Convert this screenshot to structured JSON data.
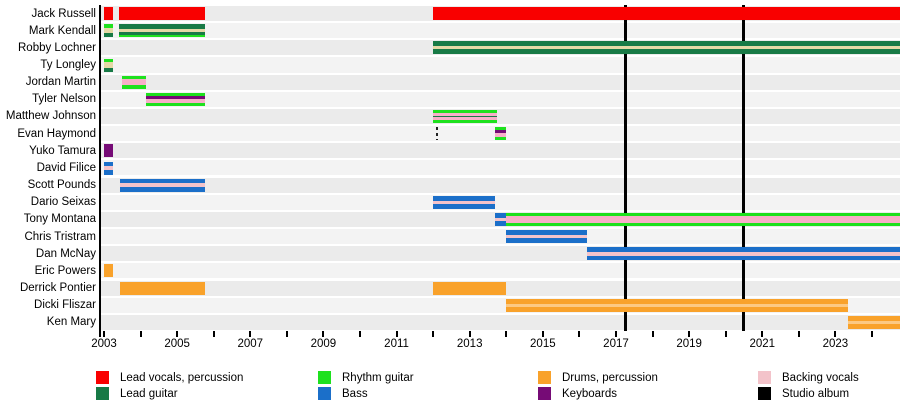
{
  "chart_data": {
    "type": "timeline",
    "description": "Band membership timeline (Gantt-style) with roles as colored bar stripes and studio album release lines",
    "x_axis": {
      "unit": "year",
      "tick_start": 2003,
      "tick_end": 2024,
      "minor_tick_every": 1,
      "label_every": 2,
      "labels": [
        "2003",
        "2005",
        "2007",
        "2009",
        "2011",
        "2013",
        "2015",
        "2017",
        "2019",
        "2021",
        "2023"
      ],
      "range": [
        2002.9,
        2024.8
      ]
    },
    "colors": {
      "lead_vocals": "#f90000",
      "lead_guitar": "#187a46",
      "rhythm_guitar": "#1ee11e",
      "bass": "#1b6fc9",
      "drums": "#f9a22b",
      "keyboards": "#760b76",
      "backing_vocals": "#f3c3ca",
      "backing_vocals_bright": "#f8afc9",
      "wheat": "#e5d9a6",
      "drums_light": "#fcc983",
      "studio_album": "#000000",
      "band_even": "#ebebeb",
      "band_odd": "#f3f3f3"
    },
    "legend": [
      {
        "label": "Lead vocals, percussion",
        "color": "lead_vocals"
      },
      {
        "label": "Lead guitar",
        "color": "lead_guitar"
      },
      {
        "label": "Rhythm guitar",
        "color": "rhythm_guitar"
      },
      {
        "label": "Bass",
        "color": "bass"
      },
      {
        "label": "Drums, percussion",
        "color": "drums"
      },
      {
        "label": "Keyboards",
        "color": "keyboards"
      },
      {
        "label": "Backing vocals",
        "color": "backing_vocals"
      },
      {
        "label": "Studio album",
        "color": "studio_album"
      }
    ],
    "albums": [
      2017.25,
      2020.5
    ],
    "members": [
      {
        "name": "Jack Russell",
        "bars": [
          {
            "start": 2003.0,
            "end": 2003.25,
            "stripes": [
              [
                "lead_vocals",
                1
              ]
            ]
          },
          {
            "start": 2003.42,
            "end": 2005.76,
            "stripes": [
              [
                "lead_vocals",
                1
              ]
            ]
          },
          {
            "start": 2012.0,
            "end": 2024.8,
            "stripes": [
              [
                "lead_vocals",
                1
              ]
            ]
          }
        ]
      },
      {
        "name": "Mark Kendall",
        "bars": [
          {
            "start": 2003.0,
            "end": 2003.25,
            "stripes": [
              [
                "rhythm_guitar",
                3
              ],
              [
                "wheat",
                4
              ],
              [
                "lead_guitar",
                3
              ]
            ]
          },
          {
            "start": 2003.42,
            "end": 2005.76,
            "stripes": [
              [
                "lead_guitar",
                4
              ],
              [
                "wheat",
                3
              ],
              [
                "lead_guitar",
                3
              ],
              [
                "rhythm_guitar",
                2
              ]
            ]
          }
        ]
      },
      {
        "name": "Robby Lochner",
        "bars": [
          {
            "start": 2012.0,
            "end": 2024.8,
            "stripes": [
              [
                "lead_guitar",
                5
              ],
              [
                "wheat",
                3
              ],
              [
                "lead_guitar",
                5
              ]
            ]
          }
        ]
      },
      {
        "name": "Ty Longley",
        "bars": [
          {
            "start": 2003.0,
            "end": 2003.25,
            "stripes": [
              [
                "rhythm_guitar",
                3
              ],
              [
                "wheat",
                4
              ],
              [
                "lead_guitar",
                3
              ]
            ]
          }
        ]
      },
      {
        "name": "Jordan Martin",
        "bars": [
          {
            "start": 2003.5,
            "end": 2004.15,
            "stripes": [
              [
                "rhythm_guitar",
                3
              ],
              [
                "backing_vocals_bright",
                6
              ],
              [
                "rhythm_guitar",
                3
              ]
            ]
          }
        ]
      },
      {
        "name": "Tyler Nelson",
        "bars": [
          {
            "start": 2004.15,
            "end": 2005.76,
            "stripes": [
              [
                "rhythm_guitar",
                3
              ],
              [
                "keyboards",
                3
              ],
              [
                "backing_vocals_bright",
                4
              ],
              [
                "rhythm_guitar",
                3
              ]
            ]
          }
        ]
      },
      {
        "name": "Matthew Johnson",
        "bars": [
          {
            "start": 2012.0,
            "end": 2013.75,
            "stripes": [
              [
                "rhythm_guitar",
                3
              ],
              [
                "backing_vocals_bright",
                3
              ],
              [
                "lead_guitar",
                2
              ],
              [
                "backing_vocals_bright",
                3
              ],
              [
                "rhythm_guitar",
                3
              ]
            ]
          }
        ]
      },
      {
        "name": "Evan Haymond",
        "bars": [
          {
            "start": 2013.7,
            "end": 2014.0,
            "stripes": [
              [
                "rhythm_guitar",
                3
              ],
              [
                "keyboards",
                3
              ],
              [
                "backing_vocals_bright",
                4
              ],
              [
                "rhythm_guitar",
                3
              ]
            ]
          }
        ],
        "markers": [
          {
            "type": "dashed-line",
            "year": 2012.11
          }
        ]
      },
      {
        "name": "Yuko Tamura",
        "bars": [
          {
            "start": 2003.0,
            "end": 2003.25,
            "stripes": [
              [
                "keyboards",
                1
              ]
            ]
          }
        ]
      },
      {
        "name": "David Filice",
        "bars": [
          {
            "start": 2003.0,
            "end": 2003.25,
            "stripes": [
              [
                "bass",
                4
              ],
              [
                "backing_vocals",
                3
              ],
              [
                "bass",
                4
              ]
            ]
          }
        ]
      },
      {
        "name": "Scott Pounds",
        "bars": [
          {
            "start": 2003.45,
            "end": 2005.76,
            "stripes": [
              [
                "bass",
                4
              ],
              [
                "backing_vocals",
                3
              ],
              [
                "bass",
                4
              ]
            ]
          }
        ]
      },
      {
        "name": "Dario Seixas",
        "bars": [
          {
            "start": 2012.0,
            "end": 2013.7,
            "stripes": [
              [
                "bass",
                4
              ],
              [
                "backing_vocals",
                3
              ],
              [
                "bass",
                4
              ]
            ]
          }
        ]
      },
      {
        "name": "Tony Montana",
        "bars": [
          {
            "start": 2013.7,
            "end": 2014.0,
            "stripes": [
              [
                "bass",
                4
              ],
              [
                "backing_vocals",
                3
              ],
              [
                "bass",
                4
              ]
            ]
          },
          {
            "start": 2014.0,
            "end": 2024.8,
            "stripes": [
              [
                "rhythm_guitar",
                3
              ],
              [
                "backing_vocals_bright",
                6
              ],
              [
                "rhythm_guitar",
                3
              ]
            ]
          }
        ]
      },
      {
        "name": "Chris Tristram",
        "bars": [
          {
            "start": 2014.0,
            "end": 2016.2,
            "stripes": [
              [
                "bass",
                4
              ],
              [
                "backing_vocals",
                3
              ],
              [
                "bass",
                4
              ]
            ]
          }
        ]
      },
      {
        "name": "Dan McNay",
        "bars": [
          {
            "start": 2016.2,
            "end": 2024.8,
            "stripes": [
              [
                "bass",
                4
              ],
              [
                "backing_vocals",
                3
              ],
              [
                "bass",
                4
              ]
            ]
          }
        ]
      },
      {
        "name": "Eric Powers",
        "bars": [
          {
            "start": 2003.0,
            "end": 2003.25,
            "stripes": [
              [
                "drums",
                1
              ]
            ]
          }
        ]
      },
      {
        "name": "Derrick Pontier",
        "bars": [
          {
            "start": 2003.45,
            "end": 2005.76,
            "stripes": [
              [
                "drums",
                1
              ]
            ]
          },
          {
            "start": 2012.0,
            "end": 2014.0,
            "stripes": [
              [
                "drums",
                1
              ]
            ]
          }
        ]
      },
      {
        "name": "Dicki Fliszar",
        "bars": [
          {
            "start": 2014.0,
            "end": 2023.35,
            "stripes": [
              [
                "drums",
                4
              ],
              [
                "drums_light",
                3
              ],
              [
                "drums",
                4
              ]
            ]
          }
        ]
      },
      {
        "name": "Ken Mary",
        "bars": [
          {
            "start": 2023.35,
            "end": 2024.8,
            "stripes": [
              [
                "drums",
                4
              ],
              [
                "drums_light",
                3
              ],
              [
                "drums",
                4
              ]
            ]
          }
        ]
      }
    ]
  }
}
